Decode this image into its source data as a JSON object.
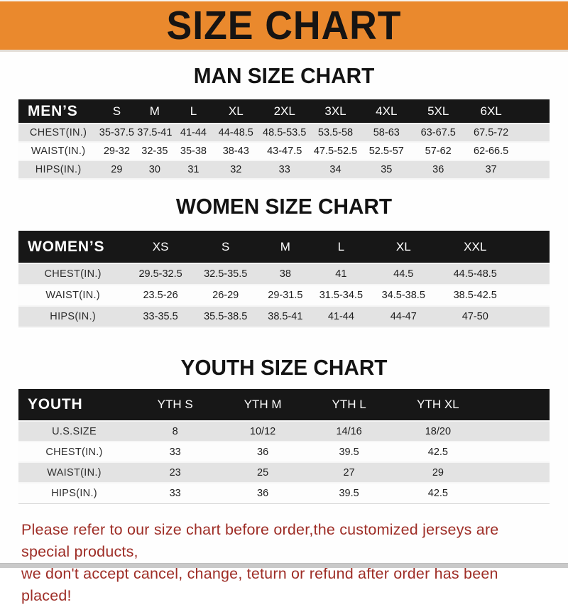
{
  "banner": {
    "title": "SIZE CHART"
  },
  "colors": {
    "banner_bg": "#EA892D",
    "table_header_bg": "#171717",
    "table_header_text": "#FFFFFF",
    "row_alt_bg": "#E3E3E3",
    "row_bg": "#FDFDFD",
    "footer_text": "#9E2D26"
  },
  "sections": [
    {
      "id": "men",
      "heading": "MAN SIZE CHART",
      "table": {
        "label": "MEN’S",
        "columns": [
          "S",
          "M",
          "L",
          "XL",
          "2XL",
          "3XL",
          "4XL",
          "5XL",
          "6XL"
        ],
        "rows": [
          {
            "label": "CHEST(IN.)",
            "values": [
              "35-37.5",
              "37.5-41",
              "41-44",
              "44-48.5",
              "48.5-53.5",
              "53.5-58",
              "58-63",
              "63-67.5",
              "67.5-72"
            ]
          },
          {
            "label": "WAIST(IN.)",
            "values": [
              "29-32",
              "32-35",
              "35-38",
              "38-43",
              "43-47.5",
              "47.5-52.5",
              "52.5-57",
              "57-62",
              "62-66.5"
            ]
          },
          {
            "label": "HIPS(IN.)",
            "values": [
              "29",
              "30",
              "31",
              "32",
              "33",
              "34",
              "35",
              "36",
              "37"
            ]
          }
        ]
      }
    },
    {
      "id": "women",
      "heading": "WOMEN SIZE CHART",
      "table": {
        "label": "WOMEN’S",
        "columns": [
          "XS",
          "S",
          "M",
          "L",
          "XL",
          "XXL"
        ],
        "rows": [
          {
            "label": "CHEST(IN.)",
            "values": [
              "29.5-32.5",
              "32.5-35.5",
              "38",
              "41",
              "44.5",
              "44.5-48.5"
            ]
          },
          {
            "label": "WAIST(IN.)",
            "values": [
              "23.5-26",
              "26-29",
              "29-31.5",
              "31.5-34.5",
              "34.5-38.5",
              "38.5-42.5"
            ]
          },
          {
            "label": "HIPS(IN.)",
            "values": [
              "33-35.5",
              "35.5-38.5",
              "38.5-41",
              "41-44",
              "44-47",
              "47-50"
            ]
          }
        ]
      }
    },
    {
      "id": "youth",
      "heading": "YOUTH SIZE CHART",
      "table": {
        "label": "YOUTH",
        "columns": [
          "YTH S",
          "YTH M",
          "YTH L",
          "YTH XL"
        ],
        "rows": [
          {
            "label": "U.S.SIZE",
            "values": [
              "8",
              "10/12",
              "14/16",
              "18/20"
            ]
          },
          {
            "label": "CHEST(IN.)",
            "values": [
              "33",
              "36",
              "39.5",
              "42.5"
            ]
          },
          {
            "label": "WAIST(IN.)",
            "values": [
              "23",
              "25",
              "27",
              "29"
            ]
          },
          {
            "label": "HIPS(IN.)",
            "values": [
              "33",
              "36",
              "39.5",
              "42.5"
            ]
          }
        ]
      }
    }
  ],
  "footer": {
    "line1": "Please refer to our size chart before order,the customized jerseys are special products,",
    "line2": "we don't accept cancel, change, teturn or refund after order has been placed!"
  }
}
